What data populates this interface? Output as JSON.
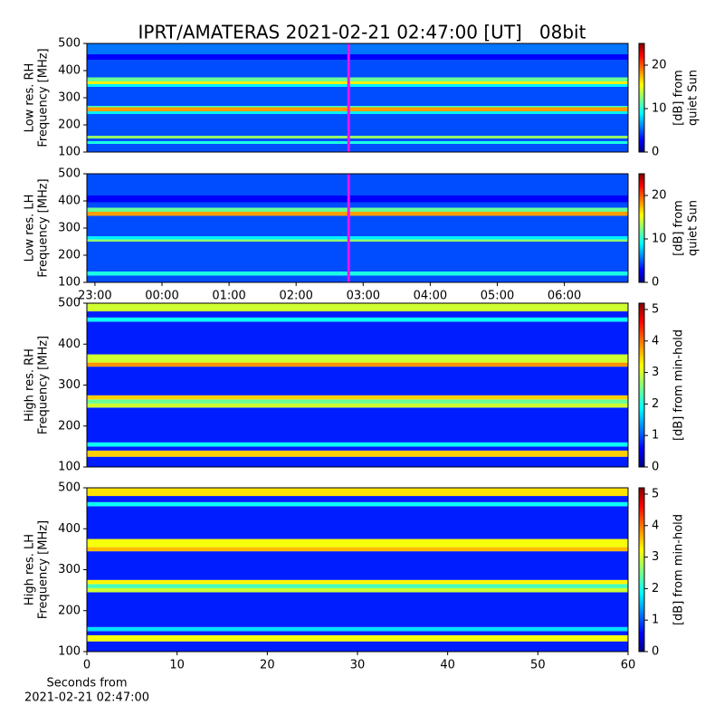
{
  "title": "IPRT/AMATERAS 2021-02-21 02:47:00 [UT]   08bit",
  "chart_data": [
    {
      "type": "heatmap",
      "ylabel": [
        "Low res. RH",
        "Frequency [MHz]"
      ],
      "ylim": [
        100,
        500
      ],
      "yticks": [
        100,
        200,
        300,
        400,
        500
      ],
      "xlim": [
        22.88,
        30.95
      ],
      "y_bins": [
        100,
        130,
        140,
        150,
        160,
        240,
        250,
        265,
        270,
        340,
        350,
        360,
        375,
        440,
        460,
        500
      ],
      "values": [
        5,
        10,
        5,
        13,
        5,
        9,
        18,
        11,
        5,
        9,
        16,
        12,
        5,
        3,
        6
      ],
      "marker_x": 26.783,
      "marker_color": "#ee11ee",
      "clim": [
        0,
        25
      ],
      "cticks": [
        0,
        10,
        20
      ],
      "clabel": [
        "[dB] from",
        "quiet Sun"
      ]
    },
    {
      "type": "heatmap",
      "ylabel": [
        "Low res. LH",
        "Frequency [MHz]"
      ],
      "ylim": [
        100,
        500
      ],
      "yticks": [
        100,
        200,
        300,
        400,
        500
      ],
      "xlim": [
        22.88,
        30.95
      ],
      "xticks": [
        {
          "value": 23,
          "label": "23:00"
        },
        {
          "value": 24,
          "label": "00:00"
        },
        {
          "value": 25,
          "label": "01:00"
        },
        {
          "value": 26,
          "label": "02:00"
        },
        {
          "value": 27,
          "label": "03:00"
        },
        {
          "value": 28,
          "label": "04:00"
        },
        {
          "value": 29,
          "label": "05:00"
        },
        {
          "value": 30,
          "label": "06:00"
        }
      ],
      "y_bins": [
        100,
        125,
        140,
        250,
        258,
        270,
        345,
        360,
        375,
        395,
        420,
        500
      ],
      "values": [
        5,
        10,
        5,
        13,
        9,
        5,
        18,
        12,
        5,
        3,
        5
      ],
      "marker_x": 26.783,
      "marker_color": "#ee11ee",
      "clim": [
        0,
        25
      ],
      "cticks": [
        0,
        10,
        20
      ],
      "clabel": [
        "[dB] from",
        "quiet Sun"
      ]
    },
    {
      "type": "heatmap",
      "ylabel": [
        "High res. RH",
        "Frequency [MHz]"
      ],
      "ylim": [
        100,
        500
      ],
      "yticks": [
        100,
        200,
        300,
        400,
        500
      ],
      "xlim": [
        0,
        60
      ],
      "y_bins": [
        100,
        125,
        140,
        150,
        160,
        245,
        255,
        265,
        275,
        345,
        355,
        375,
        455,
        465,
        480,
        500
      ],
      "values": [
        0.8,
        3.5,
        0.8,
        2,
        0.8,
        3,
        2.5,
        3.5,
        0.8,
        3.8,
        3,
        0.8,
        2,
        0.8,
        3
      ],
      "clim": [
        0,
        5.2
      ],
      "cticks": [
        0,
        1,
        2,
        3,
        4,
        5
      ],
      "clabel": [
        "[dB] from min-hold"
      ]
    },
    {
      "type": "heatmap",
      "ylabel": [
        "High res. LH",
        "Frequency [MHz]"
      ],
      "ylim": [
        100,
        500
      ],
      "yticks": [
        100,
        200,
        300,
        400,
        500
      ],
      "xlim": [
        0,
        60
      ],
      "xticks": [
        0,
        10,
        20,
        30,
        40,
        50,
        60
      ],
      "xlabel": [
        "Seconds from",
        "2021-02-21 02:47:00"
      ],
      "y_bins": [
        100,
        125,
        140,
        150,
        160,
        245,
        255,
        265,
        275,
        345,
        355,
        375,
        455,
        465,
        480,
        500
      ],
      "values": [
        0.8,
        3.2,
        0.8,
        1.8,
        0.8,
        3,
        2.3,
        3.3,
        0.8,
        3.6,
        3.2,
        0.8,
        2,
        0.8,
        3.4
      ],
      "clim": [
        0,
        5.2
      ],
      "cticks": [
        0,
        1,
        2,
        3,
        4,
        5
      ],
      "clabel": [
        "[dB] from min-hold"
      ]
    }
  ]
}
